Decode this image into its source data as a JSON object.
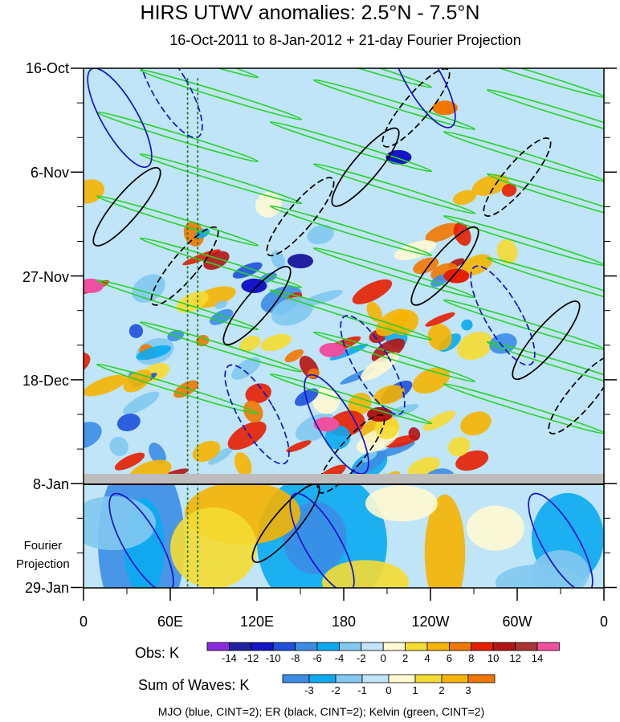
{
  "chart_data": {
    "type": "heatmap",
    "title": "HIRS UTWV anomalies: 2.5°N - 7.5°N",
    "subtitle": "16-Oct-2011 to 8-Jan-2012 + 21-day Fourier Projection",
    "x_ticks": [
      "0",
      "60E",
      "120E",
      "180",
      "120W",
      "60W",
      "0"
    ],
    "x_tick_lon": [
      0,
      60,
      120,
      180,
      240,
      300,
      360
    ],
    "y_ticks": [
      "16-Oct",
      "6-Nov",
      "27-Nov",
      "18-Dec",
      "8-Jan",
      "29-Jan"
    ],
    "y_tick_day": [
      0,
      21,
      42,
      63,
      84,
      105
    ],
    "projection_label_1": "Fourier",
    "projection_label_2": "Projection",
    "obs_colorbar": {
      "title": "Obs: K",
      "levels": [
        "-14",
        "-12",
        "-10",
        "-8",
        "-6",
        "-4",
        "-2",
        "0",
        "2",
        "4",
        "6",
        "8",
        "10",
        "12",
        "14"
      ],
      "colors": [
        "#8a2be2",
        "#2020a0",
        "#1414c8",
        "#1e50dc",
        "#3c8ce6",
        "#0aaaf0",
        "#82c8f0",
        "#c0e4f8",
        "#fffad2",
        "#f5dc32",
        "#f5b400",
        "#f07800",
        "#e61e00",
        "#b41414",
        "#aa3232",
        "#f050a0"
      ]
    },
    "waves_colorbar": {
      "title": "Sum of Waves: K",
      "levels": [
        "-3",
        "-2",
        "-1",
        "0",
        "1",
        "2",
        "3"
      ],
      "colors": [
        "#3c8ce6",
        "#0aaaf0",
        "#82c8f0",
        "#c0e4f8",
        "#fffad2",
        "#f5dc32",
        "#f5b400",
        "#f07800"
      ]
    },
    "footer": "MJO (blue, CINT=2); ER (black, CINT=2); Kelvin (green, CINT=2)",
    "contour_colors": {
      "mjo": "#1414c8",
      "er": "#000000",
      "kelvin": "#28d228",
      "reference": "#1e7a1e"
    },
    "reference_lines_lon": [
      72,
      79
    ]
  }
}
